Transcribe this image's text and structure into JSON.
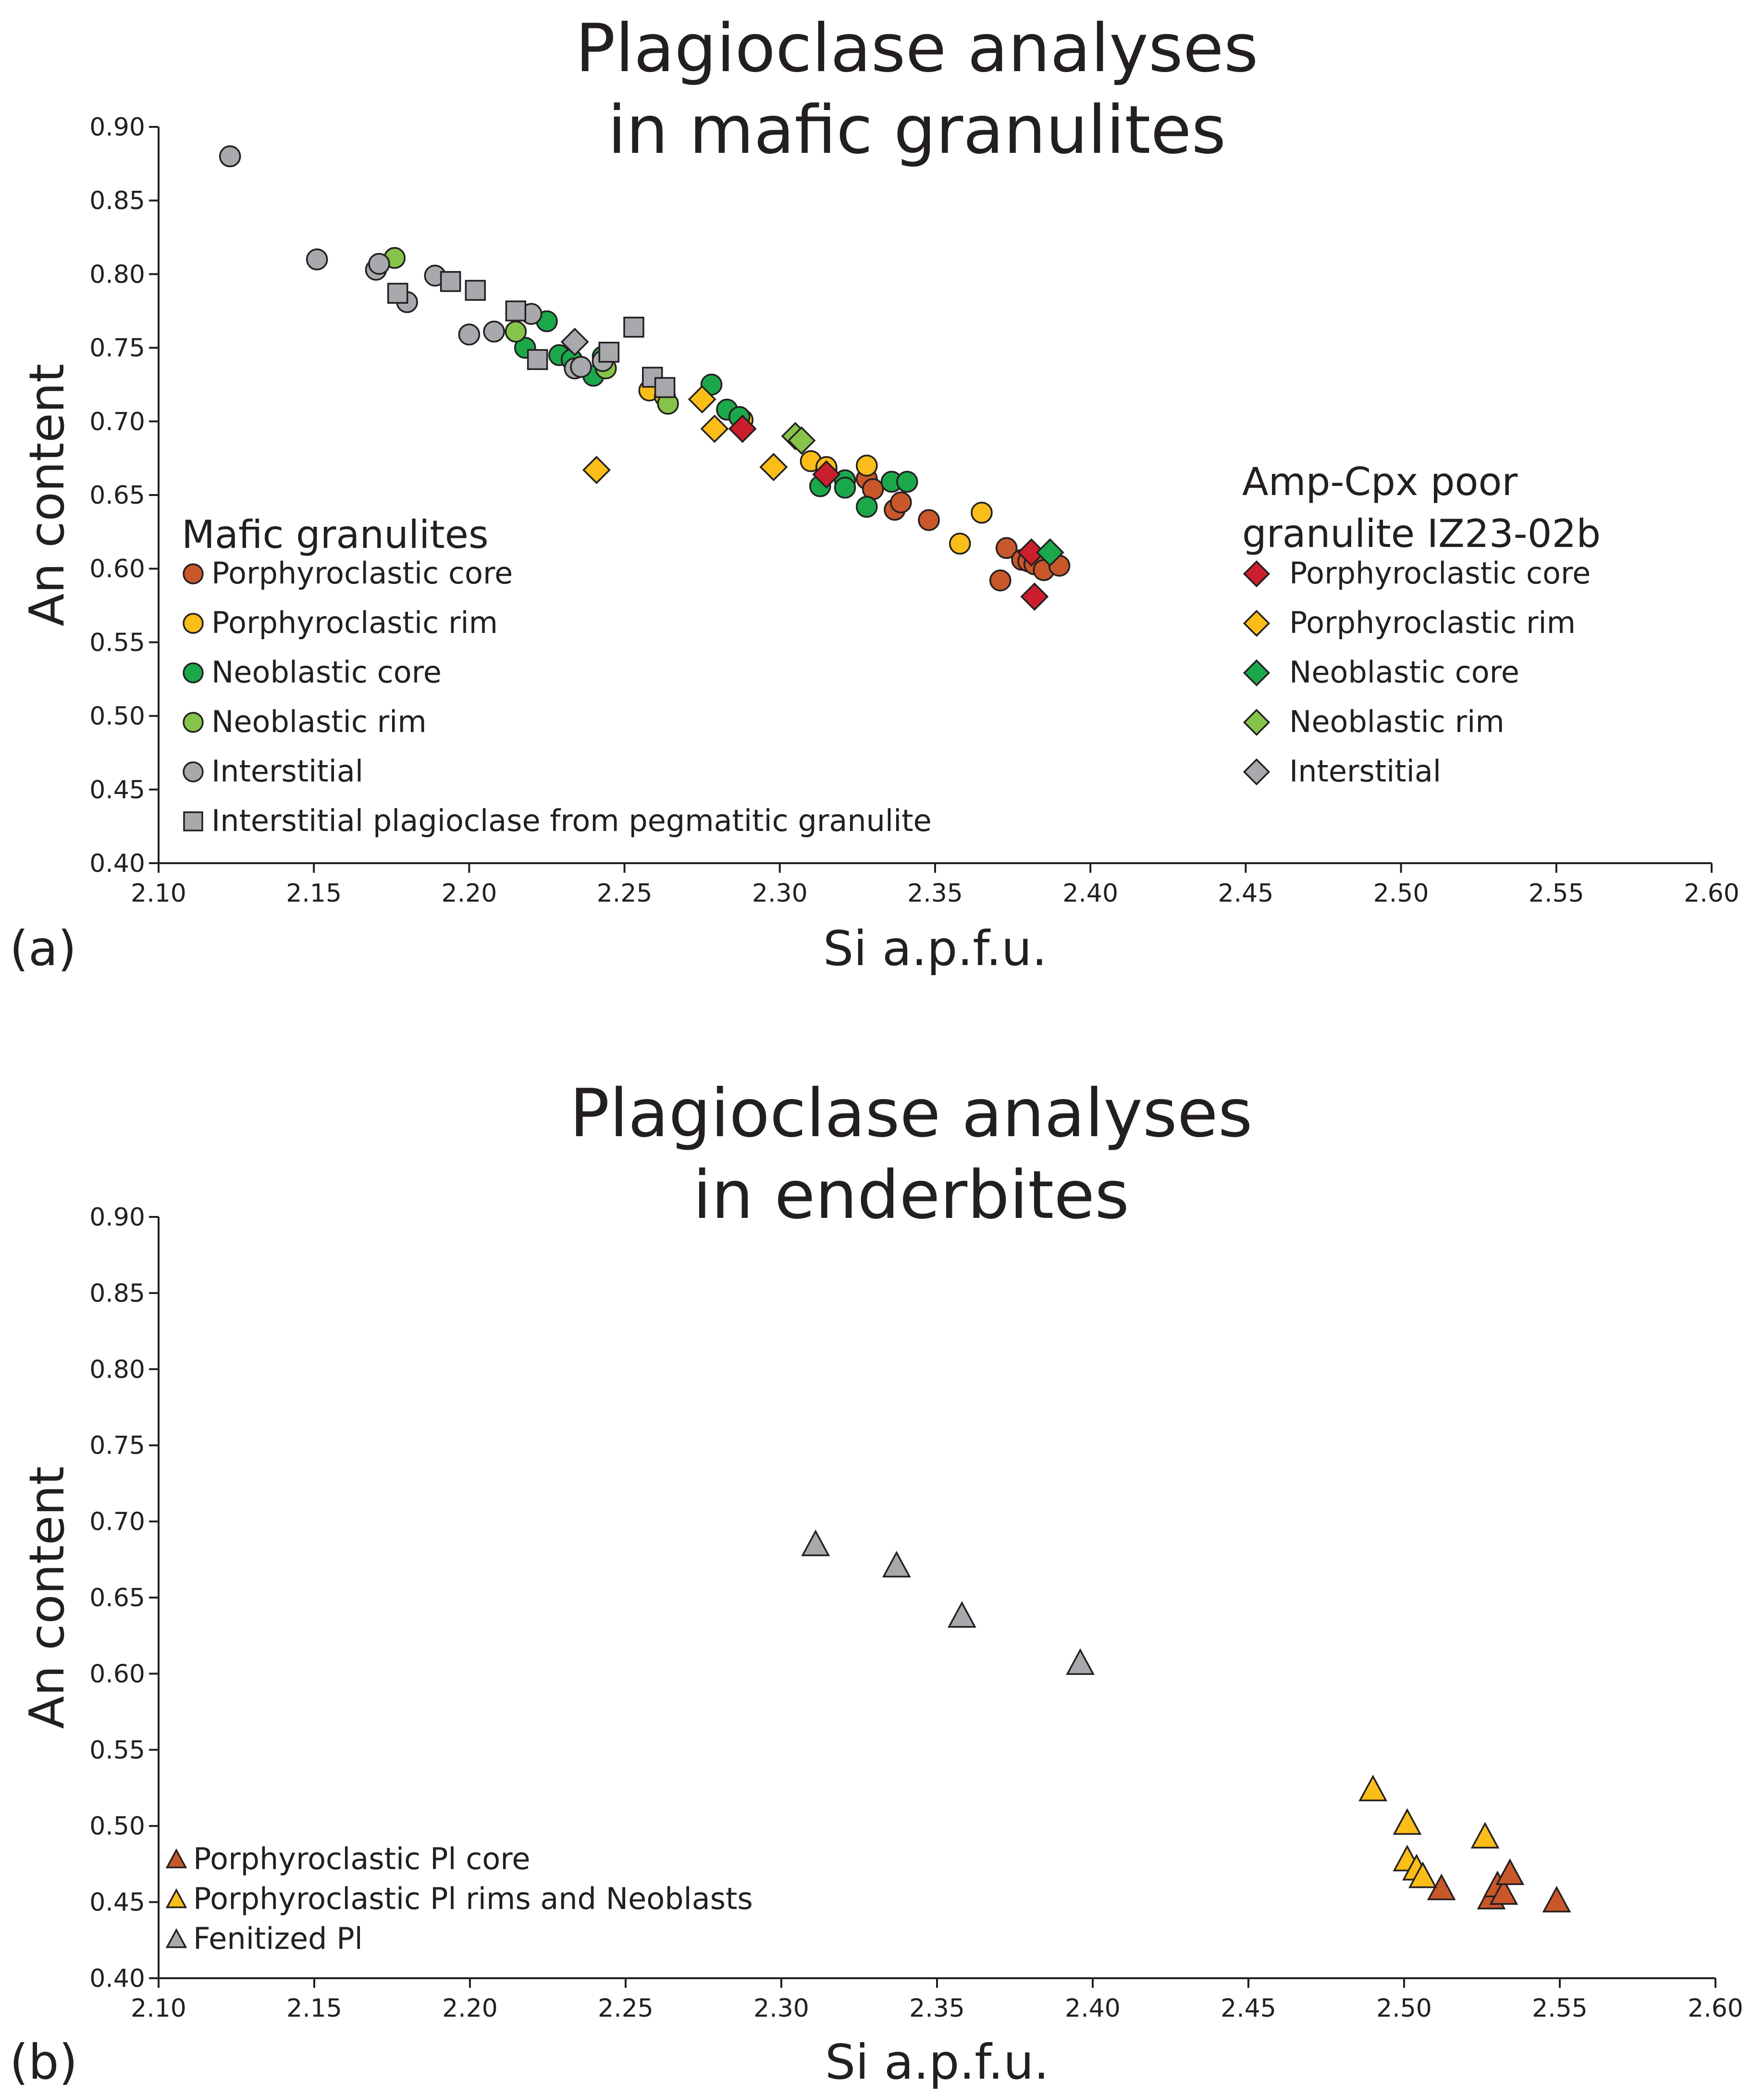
{
  "colors": {
    "porph_core": "#c8572a",
    "porph_rim": "#fbbd18",
    "neo_core": "#1aa84b",
    "neo_rim": "#86c34a",
    "interstitial": "#a7a9ac",
    "amp_core": "#cc1f2e",
    "amp_rim": "#fbbd18",
    "amp_neo_core": "#1aa84b",
    "amp_neo_rim": "#86c34a",
    "amp_interstitial": "#a7a9ac",
    "enderbite_core": "#c8572a",
    "enderbite_rim": "#fbbd18",
    "enderbite_fenitized": "#a7a9ac"
  },
  "chart_data": [
    {
      "id": "a",
      "type": "scatter",
      "panel_label": "(a)",
      "title_lines": [
        "Plagioclase analyses",
        "in mafic granulites"
      ],
      "xlabel": "Si a.p.f.u.",
      "ylabel": "An content",
      "xlim": [
        2.1,
        2.6
      ],
      "ylim": [
        0.4,
        0.9
      ],
      "xticks": [
        "2.10",
        "2.15",
        "2.20",
        "2.25",
        "2.30",
        "2.35",
        "2.40",
        "2.45",
        "2.50",
        "2.55",
        "2.60"
      ],
      "yticks": [
        "0.40",
        "0.45",
        "0.50",
        "0.55",
        "0.60",
        "0.65",
        "0.70",
        "0.75",
        "0.80",
        "0.85",
        "0.90"
      ],
      "grid": false,
      "legend_groups": [
        {
          "heading_lines": [
            "Mafic granulites"
          ],
          "placement": "bottom-left",
          "series_keys": [
            "porph_core",
            "porph_rim",
            "neo_core",
            "neo_rim",
            "interstitial",
            "pegmatitic"
          ]
        },
        {
          "heading_lines": [
            "Amp-Cpx poor",
            "granulite IZ23-02b"
          ],
          "placement": "bottom-right",
          "series_keys": [
            "amp_core",
            "amp_rim",
            "amp_neo_core",
            "amp_neo_rim",
            "amp_interstitial"
          ]
        }
      ],
      "series": [
        {
          "key": "porph_core",
          "name": "Porphyroclastic core",
          "marker": "circle",
          "color": "porph_core",
          "points": [
            [
              2.315,
              0.668
            ],
            [
              2.328,
              0.661
            ],
            [
              2.33,
              0.654
            ],
            [
              2.337,
              0.64
            ],
            [
              2.339,
              0.645
            ],
            [
              2.348,
              0.633
            ],
            [
              2.371,
              0.592
            ],
            [
              2.373,
              0.614
            ],
            [
              2.378,
              0.606
            ],
            [
              2.38,
              0.605
            ],
            [
              2.382,
              0.603
            ],
            [
              2.385,
              0.599
            ],
            [
              2.39,
              0.602
            ]
          ]
        },
        {
          "key": "porph_rim",
          "name": "Porphyroclastic rim",
          "marker": "circle",
          "color": "porph_rim",
          "points": [
            [
              2.258,
              0.721
            ],
            [
              2.263,
              0.717
            ],
            [
              2.288,
              0.701
            ],
            [
              2.31,
              0.673
            ],
            [
              2.315,
              0.669
            ],
            [
              2.328,
              0.67
            ],
            [
              2.358,
              0.617
            ],
            [
              2.365,
              0.638
            ]
          ]
        },
        {
          "key": "neo_core",
          "name": "Neoblastic core",
          "marker": "circle",
          "color": "neo_core",
          "points": [
            [
              2.218,
              0.75
            ],
            [
              2.225,
              0.768
            ],
            [
              2.229,
              0.745
            ],
            [
              2.233,
              0.742
            ],
            [
              2.24,
              0.731
            ],
            [
              2.243,
              0.744
            ],
            [
              2.278,
              0.725
            ],
            [
              2.283,
              0.708
            ],
            [
              2.287,
              0.703
            ],
            [
              2.313,
              0.656
            ],
            [
              2.321,
              0.66
            ],
            [
              2.321,
              0.655
            ],
            [
              2.328,
              0.642
            ],
            [
              2.336,
              0.659
            ],
            [
              2.341,
              0.659
            ]
          ]
        },
        {
          "key": "neo_rim",
          "name": "Neoblastic rim",
          "marker": "circle",
          "color": "neo_rim",
          "points": [
            [
              2.176,
              0.811
            ],
            [
              2.215,
              0.761
            ],
            [
              2.244,
              0.736
            ],
            [
              2.264,
              0.712
            ]
          ]
        },
        {
          "key": "interstitial",
          "name": "Interstitial",
          "marker": "circle",
          "color": "interstitial",
          "points": [
            [
              2.123,
              0.88
            ],
            [
              2.151,
              0.81
            ],
            [
              2.17,
              0.803
            ],
            [
              2.171,
              0.807
            ],
            [
              2.18,
              0.781
            ],
            [
              2.189,
              0.799
            ],
            [
              2.2,
              0.759
            ],
            [
              2.208,
              0.761
            ],
            [
              2.22,
              0.773
            ],
            [
              2.234,
              0.736
            ],
            [
              2.236,
              0.737
            ],
            [
              2.243,
              0.741
            ]
          ]
        },
        {
          "key": "pegmatitic",
          "name": "Interstitial plagioclase from pegmatitic granulite",
          "marker": "square",
          "color": "interstitial",
          "points": [
            [
              2.177,
              0.787
            ],
            [
              2.194,
              0.795
            ],
            [
              2.202,
              0.789
            ],
            [
              2.215,
              0.775
            ],
            [
              2.222,
              0.742
            ],
            [
              2.245,
              0.747
            ],
            [
              2.253,
              0.764
            ],
            [
              2.259,
              0.73
            ],
            [
              2.263,
              0.723
            ]
          ]
        },
        {
          "key": "amp_core",
          "name": "Porphyroclastic core",
          "marker": "diamond",
          "color": "amp_core",
          "points": [
            [
              2.288,
              0.695
            ],
            [
              2.315,
              0.664
            ],
            [
              2.381,
              0.611
            ],
            [
              2.382,
              0.581
            ]
          ]
        },
        {
          "key": "amp_rim",
          "name": "Porphyroclastic rim",
          "marker": "diamond",
          "color": "amp_rim",
          "points": [
            [
              2.241,
              0.667
            ],
            [
              2.275,
              0.715
            ],
            [
              2.279,
              0.695
            ],
            [
              2.298,
              0.669
            ]
          ]
        },
        {
          "key": "amp_neo_core",
          "name": "Neoblastic core",
          "marker": "diamond",
          "color": "amp_neo_core",
          "points": [
            [
              2.387,
              0.611
            ]
          ]
        },
        {
          "key": "amp_neo_rim",
          "name": "Neoblastic rim",
          "marker": "diamond",
          "color": "amp_neo_rim",
          "points": [
            [
              2.305,
              0.69
            ],
            [
              2.307,
              0.687
            ]
          ]
        },
        {
          "key": "amp_interstitial",
          "name": "Interstitial",
          "marker": "diamond",
          "color": "amp_interstitial",
          "points": [
            [
              2.234,
              0.754
            ]
          ]
        }
      ]
    },
    {
      "id": "b",
      "type": "scatter",
      "panel_label": "(b)",
      "title_lines": [
        "Plagioclase analyses",
        "in enderbites"
      ],
      "xlabel": "Si a.p.f.u.",
      "ylabel": "An content",
      "xlim": [
        2.1,
        2.6
      ],
      "ylim": [
        0.4,
        0.9
      ],
      "xticks": [
        "2.10",
        "2.15",
        "2.20",
        "2.25",
        "2.30",
        "2.35",
        "2.40",
        "2.45",
        "2.50",
        "2.55",
        "2.60"
      ],
      "yticks": [
        "0.40",
        "0.45",
        "0.50",
        "0.55",
        "0.60",
        "0.65",
        "0.70",
        "0.75",
        "0.80",
        "0.85",
        "0.90"
      ],
      "grid": false,
      "legend_groups": [
        {
          "heading_lines": [],
          "placement": "bottom-left",
          "series_keys": [
            "enderbite_core",
            "enderbite_rim",
            "enderbite_fenitized"
          ]
        }
      ],
      "series": [
        {
          "key": "enderbite_core",
          "name": "Porphyroclastic Pl core",
          "marker": "triangle",
          "color": "enderbite_core",
          "points": [
            [
              2.512,
              0.459
            ],
            [
              2.528,
              0.453
            ],
            [
              2.53,
              0.461
            ],
            [
              2.532,
              0.456
            ],
            [
              2.534,
              0.469
            ],
            [
              2.549,
              0.451
            ]
          ]
        },
        {
          "key": "enderbite_rim",
          "name": "Porphyroclastic Pl rims and Neoblasts",
          "marker": "triangle",
          "color": "enderbite_rim",
          "points": [
            [
              2.49,
              0.524
            ],
            [
              2.501,
              0.502
            ],
            [
              2.501,
              0.478
            ],
            [
              2.504,
              0.472
            ],
            [
              2.506,
              0.467
            ],
            [
              2.526,
              0.493
            ]
          ]
        },
        {
          "key": "enderbite_fenitized",
          "name": "Fenitized Pl",
          "marker": "triangle",
          "color": "enderbite_fenitized",
          "points": [
            [
              2.311,
              0.685
            ],
            [
              2.337,
              0.671
            ],
            [
              2.358,
              0.638
            ],
            [
              2.396,
              0.607
            ]
          ]
        }
      ]
    }
  ]
}
